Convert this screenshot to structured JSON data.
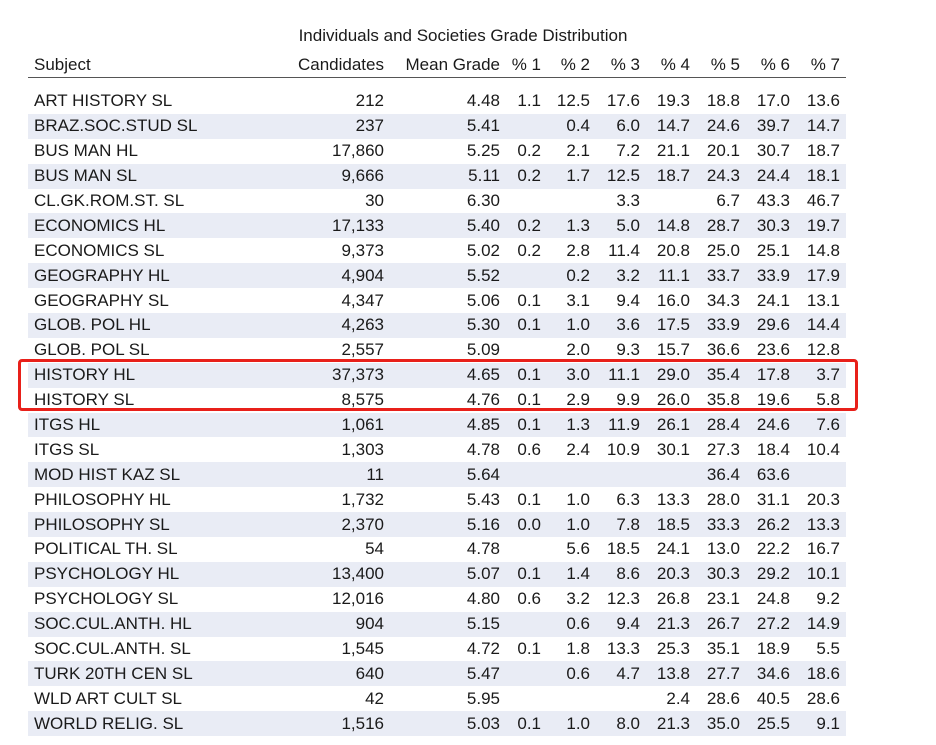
{
  "title": "Individuals and Societies Grade Distribution",
  "columns": [
    "Subject",
    "Candidates",
    "Mean Grade",
    "% 1",
    "% 2",
    "% 3",
    "% 4",
    "% 5",
    "% 6",
    "% 7"
  ],
  "rows": [
    [
      "ART HISTORY SL",
      "212",
      "4.48",
      "1.1",
      "12.5",
      "17.6",
      "19.3",
      "18.8",
      "17.0",
      "13.6"
    ],
    [
      "BRAZ.SOC.STUD SL",
      "237",
      "5.41",
      "",
      "0.4",
      "6.0",
      "14.7",
      "24.6",
      "39.7",
      "14.7"
    ],
    [
      "BUS MAN HL",
      "17,860",
      "5.25",
      "0.2",
      "2.1",
      "7.2",
      "21.1",
      "20.1",
      "30.7",
      "18.7"
    ],
    [
      "BUS MAN SL",
      "9,666",
      "5.11",
      "0.2",
      "1.7",
      "12.5",
      "18.7",
      "24.3",
      "24.4",
      "18.1"
    ],
    [
      "CL.GK.ROM.ST. SL",
      "30",
      "6.30",
      "",
      "",
      "3.3",
      "",
      "6.7",
      "43.3",
      "46.7"
    ],
    [
      "ECONOMICS HL",
      "17,133",
      "5.40",
      "0.2",
      "1.3",
      "5.0",
      "14.8",
      "28.7",
      "30.3",
      "19.7"
    ],
    [
      "ECONOMICS SL",
      "9,373",
      "5.02",
      "0.2",
      "2.8",
      "11.4",
      "20.8",
      "25.0",
      "25.1",
      "14.8"
    ],
    [
      "GEOGRAPHY HL",
      "4,904",
      "5.52",
      "",
      "0.2",
      "3.2",
      "11.1",
      "33.7",
      "33.9",
      "17.9"
    ],
    [
      "GEOGRAPHY SL",
      "4,347",
      "5.06",
      "0.1",
      "3.1",
      "9.4",
      "16.0",
      "34.3",
      "24.1",
      "13.1"
    ],
    [
      "GLOB. POL HL",
      "4,263",
      "5.30",
      "0.1",
      "1.0",
      "3.6",
      "17.5",
      "33.9",
      "29.6",
      "14.4"
    ],
    [
      "GLOB. POL SL",
      "2,557",
      "5.09",
      "",
      "2.0",
      "9.3",
      "15.7",
      "36.6",
      "23.6",
      "12.8"
    ],
    [
      "HISTORY HL",
      "37,373",
      "4.65",
      "0.1",
      "3.0",
      "11.1",
      "29.0",
      "35.4",
      "17.8",
      "3.7"
    ],
    [
      "HISTORY SL",
      "8,575",
      "4.76",
      "0.1",
      "2.9",
      "9.9",
      "26.0",
      "35.8",
      "19.6",
      "5.8"
    ],
    [
      "ITGS HL",
      "1,061",
      "4.85",
      "0.1",
      "1.3",
      "11.9",
      "26.1",
      "28.4",
      "24.6",
      "7.6"
    ],
    [
      "ITGS SL",
      "1,303",
      "4.78",
      "0.6",
      "2.4",
      "10.9",
      "30.1",
      "27.3",
      "18.4",
      "10.4"
    ],
    [
      "MOD HIST KAZ SL",
      "11",
      "5.64",
      "",
      "",
      "",
      "",
      "36.4",
      "63.6",
      ""
    ],
    [
      "PHILOSOPHY HL",
      "1,732",
      "5.43",
      "0.1",
      "1.0",
      "6.3",
      "13.3",
      "28.0",
      "31.1",
      "20.3"
    ],
    [
      "PHILOSOPHY SL",
      "2,370",
      "5.16",
      "0.0",
      "1.0",
      "7.8",
      "18.5",
      "33.3",
      "26.2",
      "13.3"
    ],
    [
      "POLITICAL TH. SL",
      "54",
      "4.78",
      "",
      "5.6",
      "18.5",
      "24.1",
      "13.0",
      "22.2",
      "16.7"
    ],
    [
      "PSYCHOLOGY HL",
      "13,400",
      "5.07",
      "0.1",
      "1.4",
      "8.6",
      "20.3",
      "30.3",
      "29.2",
      "10.1"
    ],
    [
      "PSYCHOLOGY SL",
      "12,016",
      "4.80",
      "0.6",
      "3.2",
      "12.3",
      "26.8",
      "23.1",
      "24.8",
      "9.2"
    ],
    [
      "SOC.CUL.ANTH. HL",
      "904",
      "5.15",
      "",
      "0.6",
      "9.4",
      "21.3",
      "26.7",
      "27.2",
      "14.9"
    ],
    [
      "SOC.CUL.ANTH. SL",
      "1,545",
      "4.72",
      "0.1",
      "1.8",
      "13.3",
      "25.3",
      "35.1",
      "18.9",
      "5.5"
    ],
    [
      "TURK 20TH CEN SL",
      "640",
      "5.47",
      "",
      "0.6",
      "4.7",
      "13.8",
      "27.7",
      "34.6",
      "18.6"
    ],
    [
      "WLD ART CULT SL",
      "42",
      "5.95",
      "",
      "",
      "",
      "2.4",
      "28.6",
      "40.5",
      "28.6"
    ],
    [
      "WORLD RELIG. SL",
      "1,516",
      "5.03",
      "0.1",
      "1.0",
      "8.0",
      "21.3",
      "35.0",
      "25.5",
      "9.1"
    ]
  ],
  "highlight": {
    "rows": [
      "HISTORY HL",
      "HISTORY SL"
    ],
    "color": "#e8201a"
  },
  "colors": {
    "stripe": "#e9ecf5",
    "text": "#1a1a1a"
  }
}
